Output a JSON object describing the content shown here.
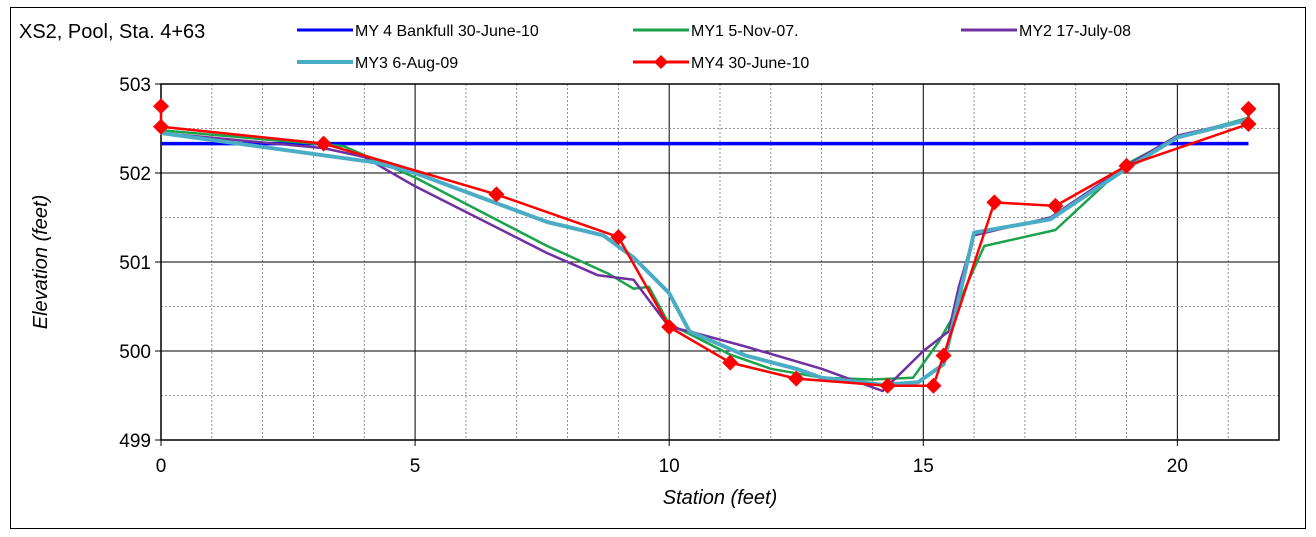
{
  "chart_data": {
    "type": "line",
    "title": "XS2, Pool, Sta. 4+63",
    "xlabel": "Station (feet)",
    "ylabel": "Elevation (feet)",
    "xlim": [
      0,
      22
    ],
    "ylim": [
      499,
      503
    ],
    "xticks": [
      0,
      5,
      10,
      15,
      20
    ],
    "yticks": [
      499,
      500,
      501,
      502,
      503
    ],
    "x_minor_gridlines_every": 1,
    "y_minor_gridlines_every": 0.5,
    "grid": true,
    "legend_position": "top",
    "series": [
      {
        "name": "MY 4 Bankfull 30-June-10",
        "color": "#0000ff",
        "marker": "none",
        "x": [
          0,
          21.4
        ],
        "y": [
          502.33,
          502.33
        ]
      },
      {
        "name": "MY1 5-Nov-07.",
        "color": "#1aa34a",
        "marker": "none",
        "x": [
          0,
          3.6,
          5.0,
          7.6,
          8.8,
          9.3,
          9.6,
          10.0,
          10.3,
          11.2,
          12.0,
          13.0,
          14.0,
          14.8,
          15.3,
          15.6,
          15.9,
          16.2,
          17.6,
          19.0,
          20.0,
          21.4
        ],
        "y": [
          502.48,
          502.3,
          501.95,
          501.18,
          500.87,
          500.7,
          500.72,
          500.3,
          500.22,
          499.96,
          499.8,
          499.7,
          499.68,
          499.7,
          500.1,
          500.4,
          500.8,
          501.18,
          501.36,
          502.1,
          502.4,
          502.62
        ]
      },
      {
        "name": "MY2 17-July-08",
        "color": "#7030a0",
        "marker": "none",
        "x": [
          0,
          3.2,
          4.0,
          5.0,
          7.6,
          8.6,
          9.3,
          10.0,
          10.4,
          11.5,
          13.0,
          14.2,
          15.0,
          15.5,
          15.7,
          16.0,
          17.5,
          19.0,
          20.0,
          21.4
        ],
        "y": [
          502.45,
          502.28,
          502.18,
          501.85,
          501.1,
          500.85,
          500.8,
          500.27,
          500.22,
          500.05,
          499.8,
          499.55,
          500.0,
          500.22,
          500.72,
          501.3,
          501.5,
          502.08,
          502.42,
          502.6
        ]
      },
      {
        "name": "MY3 6-Aug-09",
        "color": "#4bacc6",
        "marker": "none",
        "x": [
          0,
          4.2,
          5.0,
          7.6,
          8.7,
          9.3,
          10.0,
          10.4,
          11.5,
          12.5,
          13.0,
          14.2,
          14.9,
          15.4,
          16.0,
          17.5,
          19.0,
          20.0,
          21.4
        ],
        "y": [
          502.45,
          502.12,
          502.0,
          501.45,
          501.3,
          501.05,
          500.65,
          500.22,
          499.95,
          499.8,
          499.7,
          499.62,
          499.65,
          499.85,
          501.33,
          501.48,
          502.05,
          502.4,
          502.6
        ]
      },
      {
        "name": "MY4 30-June-10",
        "color": "#ff0000",
        "marker": "diamond",
        "x": [
          0,
          0,
          3.2,
          6.6,
          9.0,
          10.0,
          11.2,
          12.5,
          14.3,
          15.2,
          15.4,
          16.4,
          17.6,
          19.0,
          21.4,
          21.4
        ],
        "y": [
          502.75,
          502.52,
          502.33,
          501.76,
          501.28,
          500.27,
          499.87,
          499.69,
          499.61,
          499.61,
          499.95,
          501.67,
          501.63,
          502.08,
          502.55,
          502.72
        ]
      }
    ]
  }
}
